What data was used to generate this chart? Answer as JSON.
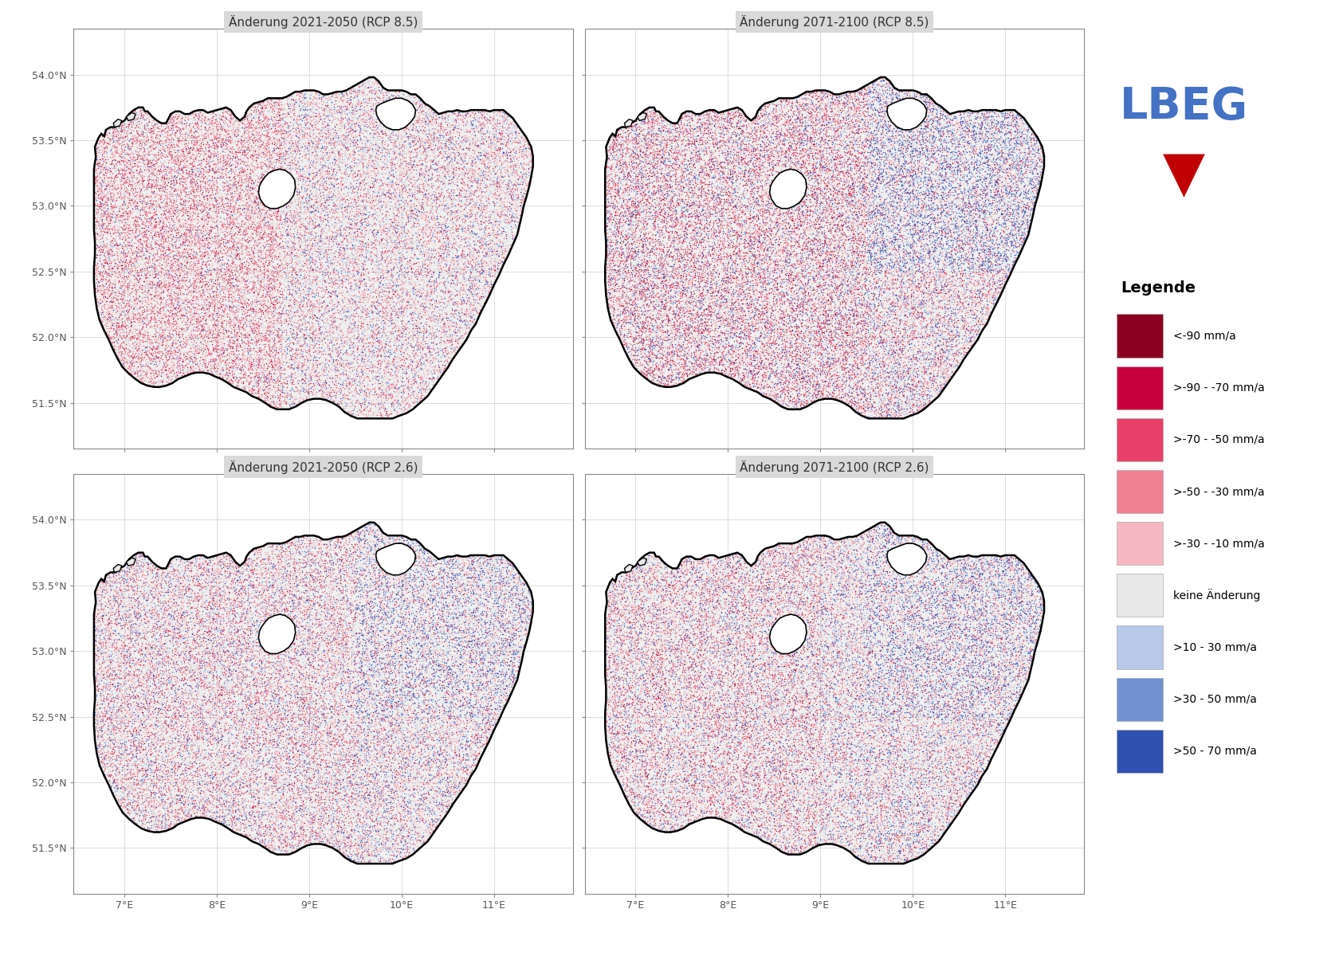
{
  "panel_titles": [
    "Änderung 2021-2050 (RCP 8.5)",
    "Änderung 2071-2100 (RCP 8.5)",
    "Änderung 2021-2050 (RCP 2.6)",
    "Änderung 2071-2100 (RCP 2.6)"
  ],
  "xlim": [
    6.45,
    11.85
  ],
  "ylim": [
    51.15,
    54.35
  ],
  "xticks": [
    7,
    8,
    9,
    10,
    11
  ],
  "yticks": [
    51.5,
    52.0,
    52.5,
    53.0,
    53.5,
    54.0
  ],
  "xlabel_labels": [
    "7°E",
    "8°E",
    "9°E",
    "10°E",
    "11°E"
  ],
  "ylabel_labels": [
    "51.5°N",
    "52.0°N",
    "52.5°N",
    "53.0°N",
    "53.5°N",
    "54.0°N"
  ],
  "legend_title": "Legende",
  "legend_colors": [
    "#8B0020",
    "#C8003C",
    "#E8406A",
    "#F08090",
    "#F5B8C0",
    "#E8E8E8",
    "#B8C8E8",
    "#7090D0",
    "#3050B0"
  ],
  "legend_labels": [
    "<-90 mm/a",
    ">-90 - -70 mm/a",
    ">-70 - -50 mm/a",
    ">-50 - -30 mm/a",
    ">-30 - -10 mm/a",
    "keine Änderung",
    ">10 - 30 mm/a",
    ">30 - 50 mm/a",
    ">50 - 70 mm/a"
  ],
  "background_color": "#ffffff",
  "grid_color": "#dddddd",
  "lbeg_blue": "#4472C4",
  "lbeg_red": "#C00000",
  "title_bg": "#d9d9d9"
}
